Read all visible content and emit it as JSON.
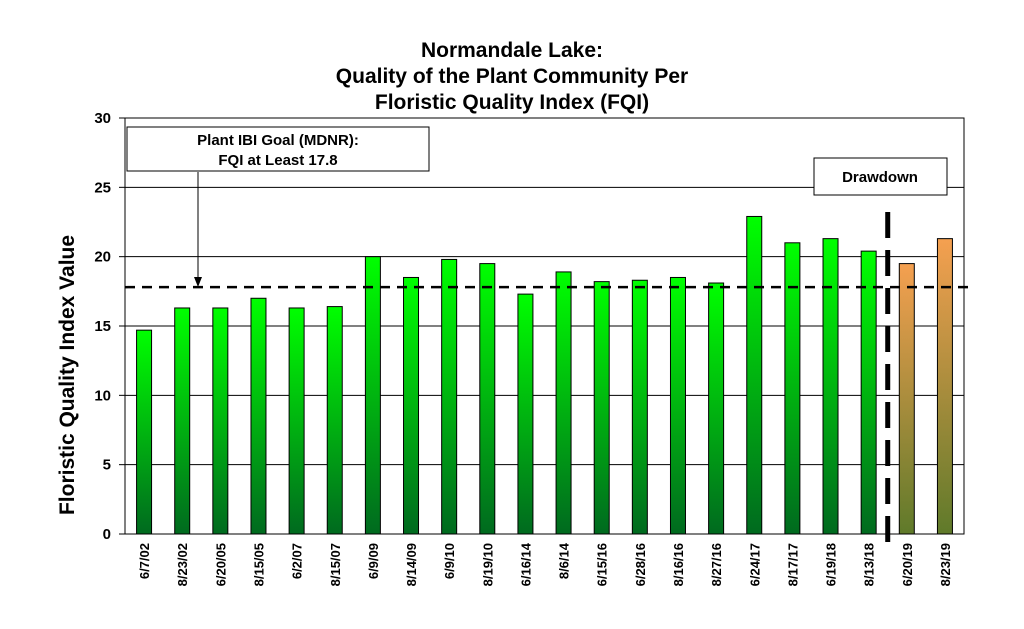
{
  "chart_data": {
    "type": "bar",
    "title": [
      "Normandale Lake:",
      "Quality of the Plant Community Per",
      "Floristic Quality Index (FQI)"
    ],
    "xlabel": "",
    "ylabel": "Floristic Quality Index Value",
    "ylim": [
      0,
      30
    ],
    "yticks": [
      0,
      5,
      10,
      15,
      20,
      25,
      30
    ],
    "grid": true,
    "categories": [
      "6/7/02",
      "8/23/02",
      "6/20/05",
      "8/15/05",
      "6/2/07",
      "8/15/07",
      "6/9/09",
      "8/14/09",
      "6/9/10",
      "8/19/10",
      "6/16/14",
      "8/6/14",
      "6/15/16",
      "6/28/16",
      "8/16/16",
      "8/27/16",
      "6/24/17",
      "8/17/17",
      "6/19/18",
      "8/13/18",
      "6/20/19",
      "8/23/19"
    ],
    "values": [
      14.7,
      16.3,
      16.3,
      17.0,
      16.3,
      16.4,
      20.0,
      18.5,
      19.8,
      19.5,
      17.3,
      18.9,
      18.2,
      18.3,
      18.5,
      18.1,
      22.9,
      21.0,
      21.3,
      20.4,
      19.5,
      21.3
    ],
    "bar_groups": [
      "pre",
      "pre",
      "pre",
      "pre",
      "pre",
      "pre",
      "pre",
      "pre",
      "pre",
      "pre",
      "pre",
      "pre",
      "pre",
      "pre",
      "pre",
      "pre",
      "pre",
      "pre",
      "pre",
      "pre",
      "post",
      "post"
    ],
    "colors": {
      "pre_top": "#00ff00",
      "pre_bottom": "#006a1f",
      "post_top": "#f5a050",
      "post_bottom": "#5f7a2a",
      "bar_outline": "#000000",
      "grid": "#000000"
    },
    "goal": {
      "value": 17.8,
      "label_lines": [
        "Plant IBI Goal (MDNR):",
        "FQI at Least 17.8"
      ]
    },
    "drawdown": {
      "label": "Drawdown",
      "after_category": "8/13/18"
    }
  }
}
